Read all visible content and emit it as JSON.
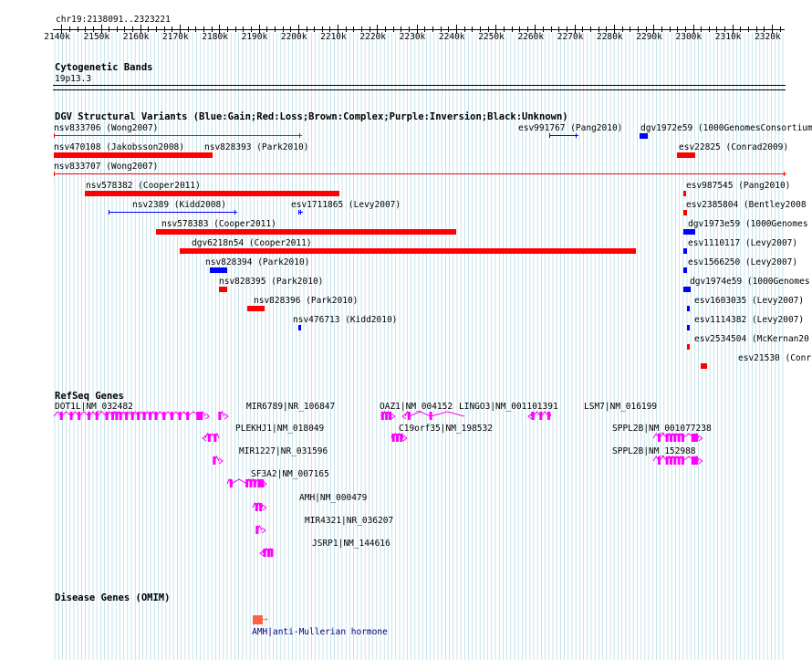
{
  "ruler": {
    "region": "chr19:2138091..2323221",
    "start": 2138091,
    "end": 2323221,
    "ticks": [
      "2140k",
      "2150k",
      "2160k",
      "2170k",
      "2180k",
      "2190k",
      "2200k",
      "2210k",
      "2220k",
      "2230k",
      "2240k",
      "2250k",
      "2260k",
      "2270k",
      "2280k",
      "2290k",
      "2300k",
      "2310k",
      "2320k"
    ]
  },
  "cytobands": {
    "title": "Cytogenetic Bands",
    "band": "19p13.3"
  },
  "dgv": {
    "title": "DGV Structural Variants (Blue:Gain;Red:Loss;Brown:Complex;Purple:Inversion;Black:Unknown)",
    "colors": {
      "gain": "#0000ff",
      "loss": "#ff0000",
      "complex": "#8b4513",
      "inversion": "#800080",
      "unknown": "#000000"
    },
    "features": [
      {
        "label": "nsv833706 (Wong2007)",
        "start": 2138091,
        "end": 2200500,
        "type": "loss",
        "style": "thin"
      },
      {
        "label": "esv991767 (Pang2010)",
        "start": 2263500,
        "end": 2270500,
        "type": "gain",
        "style": "thin"
      },
      {
        "label": "dgv1972e59 (1000GenomesConsortium",
        "start": 2286500,
        "end": 2288500,
        "type": "gain",
        "style": "thick"
      },
      {
        "label": "nsv470108 (Jakobsson2008)",
        "start": 2138091,
        "end": 2177500,
        "type": "loss",
        "style": "thick"
      },
      {
        "label": "nsv828393 (Park2010)",
        "start": 2177500,
        "end": 2178000,
        "type": "loss",
        "style": "thick"
      },
      {
        "label": "esv22825 (Conrad2009)",
        "start": 2296000,
        "end": 2300500,
        "type": "loss",
        "style": "thick"
      },
      {
        "label": "nsv833707 (Wong2007)",
        "start": 2138091,
        "end": 2323221,
        "type": "loss",
        "style": "thin"
      },
      {
        "label": "nsv578382 (Cooper2011)",
        "start": 2146000,
        "end": 2210500,
        "type": "loss",
        "style": "thick"
      },
      {
        "label": "esv987545 (Pang2010)",
        "start": 2297500,
        "end": 2298000,
        "type": "loss",
        "style": "thick"
      },
      {
        "label": "nsv2389 (Kidd2008)",
        "start": 2152000,
        "end": 2184000,
        "type": "gain",
        "style": "thin"
      },
      {
        "label": "esv1711865 (Levy2007)",
        "start": 2200000,
        "end": 2200500,
        "type": "gain",
        "style": "thin"
      },
      {
        "label": "esv2385804 (Bentley2008",
        "start": 2297500,
        "end": 2298500,
        "type": "loss",
        "style": "thick"
      },
      {
        "label": "nsv578383 (Cooper2011)",
        "start": 2164000,
        "end": 2240000,
        "type": "loss",
        "style": "thick"
      },
      {
        "label": "dgv1973e59 (1000Genomes",
        "start": 2297500,
        "end": 2300500,
        "type": "gain",
        "style": "thick"
      },
      {
        "label": "dgv6218n54 (Cooper2011)",
        "start": 2170000,
        "end": 2285500,
        "type": "loss",
        "style": "thick"
      },
      {
        "label": "esv1110117 (Levy2007)",
        "start": 2297500,
        "end": 2298500,
        "type": "gain",
        "style": "thick"
      },
      {
        "label": "nsv828394 (Park2010)",
        "start": 2177500,
        "end": 2182000,
        "type": "gain",
        "style": "thick"
      },
      {
        "label": "esv1566250 (Levy2007)",
        "start": 2297500,
        "end": 2298500,
        "type": "gain",
        "style": "thick"
      },
      {
        "label": "nsv828395 (Park2010)",
        "start": 2180000,
        "end": 2182000,
        "type": "loss",
        "style": "thick"
      },
      {
        "label": "dgv1974e59 (1000Genomes",
        "start": 2297500,
        "end": 2299500,
        "type": "gain",
        "style": "thick"
      },
      {
        "label": "nsv828396 (Park2010)",
        "start": 2187000,
        "end": 2191500,
        "type": "loss",
        "style": "thick"
      },
      {
        "label": "esv1603035 (Levy2007)",
        "start": 2298500,
        "end": 2299000,
        "type": "gain",
        "style": "thick"
      },
      {
        "label": "nsv476713 (Kidd2010)",
        "start": 2200000,
        "end": 2200500,
        "type": "gain",
        "style": "thick"
      },
      {
        "label": "esv1114382 (Levy2007)",
        "start": 2298500,
        "end": 2299000,
        "type": "gain",
        "style": "thick"
      },
      {
        "label": "esv2534504 (McKernan20",
        "start": 2298500,
        "end": 2299000,
        "type": "loss",
        "style": "thick"
      },
      {
        "label": "esv21530 (Conr",
        "start": 2302000,
        "end": 2303500,
        "type": "loss",
        "style": "thick"
      }
    ]
  },
  "refseq": {
    "title": "RefSeq Genes",
    "color": "#ff00ff",
    "genes": [
      {
        "label": "DOT1L|NM_032482",
        "start": 2138091,
        "end": 2176500,
        "strand": "+",
        "exons": [
          2140000,
          2142500,
          2144500,
          2147000,
          2149000,
          2151500,
          2153000,
          2154000,
          2155000,
          2156500,
          2158000,
          2159500,
          2161000,
          2162500,
          2164000,
          2166000,
          2168000,
          2170000,
          2172000,
          2175000
        ]
      },
      {
        "label": "MIR6789|NR_106847",
        "start": 2180000,
        "end": 2180500,
        "strand": "+",
        "exons": [
          2180200
        ]
      },
      {
        "label": "OAZ1|NM_004152",
        "start": 2221000,
        "end": 2223500,
        "strand": "+",
        "exons": [
          2221300,
          2222300,
          2223200
        ]
      },
      {
        "label": "LINGO3|NM_001101391",
        "start": 2227000,
        "end": 2242000,
        "strand": "-",
        "exons": [
          2228000,
          2233500
        ]
      },
      {
        "label": "LSM7|NM_016199",
        "start": 2259000,
        "end": 2264000,
        "strand": "-",
        "exons": [
          2259500,
          2261500,
          2263500
        ]
      },
      {
        "label": "PLEKHJ1|NM_018049",
        "start": 2176500,
        "end": 2180000,
        "strand": "-",
        "exons": [
          2177500,
          2179000
        ]
      },
      {
        "label": "C19orf35|NM_198532",
        "start": 2223500,
        "end": 2226500,
        "strand": "+",
        "exons": [
          2224000,
          2225000,
          2226000
        ]
      },
      {
        "label": "SPPL2B|NM_001077238",
        "start": 2290000,
        "end": 2301500,
        "strand": "+",
        "exons": [
          2291500,
          2293500,
          2294500,
          2295500,
          2296500,
          2297500,
          2300500
        ]
      },
      {
        "label": "MIR1227|NR_031596",
        "start": 2178500,
        "end": 2179000,
        "strand": "+",
        "exons": [
          2178700
        ]
      },
      {
        "label": "SPPL2B|NM_152988",
        "start": 2290000,
        "end": 2301500,
        "strand": "+",
        "exons": [
          2291500,
          2293500,
          2294500,
          2295500,
          2296500,
          2297500,
          2300500
        ]
      },
      {
        "label": "SF3A2|NM_007165",
        "start": 2182000,
        "end": 2191000,
        "strand": "+",
        "exons": [
          2183000,
          2187000,
          2188000,
          2189000,
          2190500
        ]
      },
      {
        "label": "AMH|NM_000479",
        "start": 2188500,
        "end": 2191000,
        "strand": "+",
        "exons": [
          2189500,
          2190500
        ]
      },
      {
        "label": "MIR4321|NR_036207",
        "start": 2189500,
        "end": 2190000,
        "strand": "+",
        "exons": [
          2189700
        ]
      },
      {
        "label": "JSRP1|NM_144616",
        "start": 2191000,
        "end": 2193500,
        "strand": "-",
        "exons": [
          2191500,
          2192500,
          2193300
        ]
      }
    ]
  },
  "omim": {
    "title": "Disease Genes (OMIM)",
    "color": "#ff6347",
    "label_color": "#000080",
    "genes": [
      {
        "label": "AMH|anti-Mullerian hormone",
        "start": 2188500,
        "end": 2191000,
        "strand": "+"
      }
    ]
  }
}
